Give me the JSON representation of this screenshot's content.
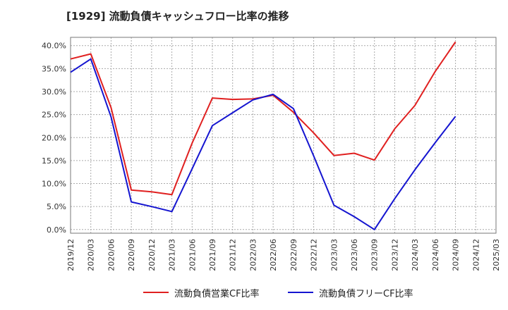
{
  "chart_data": {
    "type": "line",
    "title": "[1929]  流動負債キャッシュフロー比率の推移",
    "x": [
      "2019/12",
      "2020/03",
      "2020/06",
      "2020/09",
      "2020/12",
      "2021/03",
      "2021/06",
      "2021/09",
      "2021/12",
      "2022/03",
      "2022/06",
      "2022/09",
      "2022/12",
      "2023/03",
      "2023/06",
      "2023/09",
      "2023/12",
      "2024/03",
      "2024/06",
      "2024/09",
      "2024/12",
      "2025/03"
    ],
    "y_ticks": [
      "0.0%",
      "5.0%",
      "10.0%",
      "15.0%",
      "20.0%",
      "25.0%",
      "30.0%",
      "35.0%",
      "40.0%"
    ],
    "ylim": [
      -0.8,
      41.8
    ],
    "grid": true,
    "legend_position": "bottom",
    "series": [
      {
        "name": "流動負債営業CF比率",
        "color": "#e02020",
        "values": [
          37.1,
          38.2,
          26.5,
          8.6,
          8.2,
          7.6,
          18.8,
          28.6,
          28.3,
          28.4,
          29.2,
          25.5,
          21.0,
          16.1,
          16.6,
          15.1,
          21.9,
          27.0,
          34.4,
          40.8,
          null,
          null
        ]
      },
      {
        "name": "流動負債フリーCF比率",
        "color": "#1515d0",
        "values": [
          34.2,
          37.1,
          24.5,
          6.0,
          5.0,
          3.9,
          13.2,
          22.6,
          25.4,
          28.2,
          29.4,
          26.3,
          16.0,
          5.3,
          2.8,
          0.0,
          6.7,
          13.0,
          18.9,
          24.6,
          null,
          null
        ]
      }
    ]
  }
}
